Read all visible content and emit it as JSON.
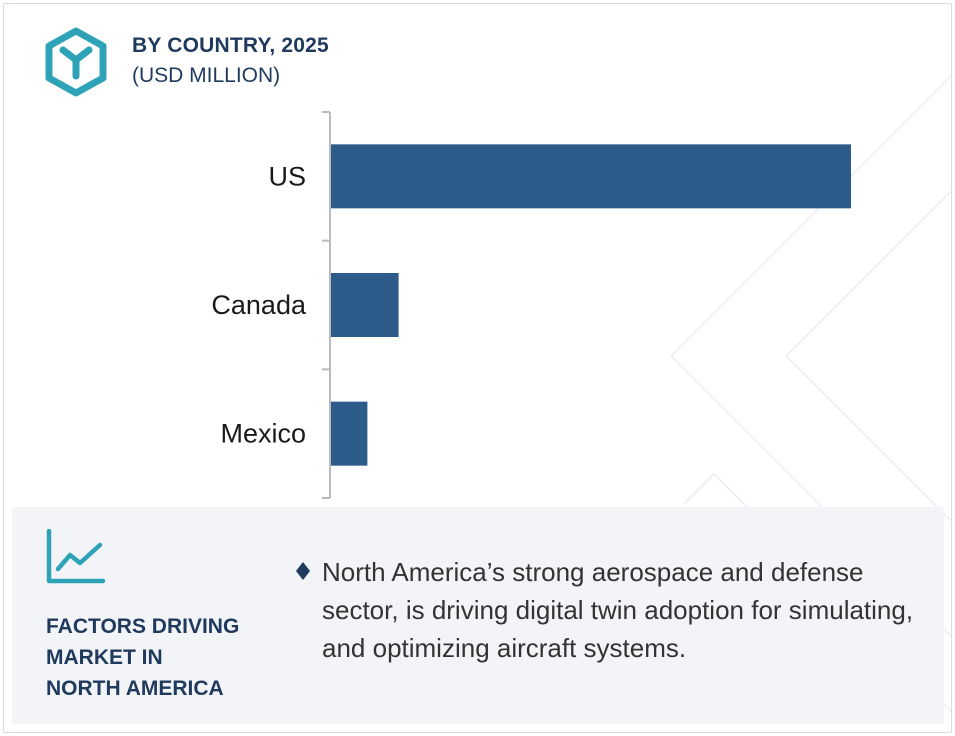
{
  "header": {
    "title": "BY COUNTRY, 2025",
    "subtitle": "(USD MILLION)",
    "logo_icon": "hexagon-y-logo-icon"
  },
  "colors": {
    "bar": "#2e5c8a",
    "heading": "#1f3a5c",
    "accent": "#2ea3b8",
    "panel_bg": "#f2f4f8"
  },
  "chart_data": {
    "type": "bar",
    "orientation": "horizontal",
    "categories": [
      "US",
      "Canada",
      "Mexico"
    ],
    "values": [
      100,
      13,
      7
    ],
    "title": "BY COUNTRY, 2025",
    "subtitle": "(USD MILLION)",
    "xlim": [
      0,
      100
    ],
    "grid": false,
    "legend": "none"
  },
  "factors": {
    "icon": "trend-line-chart-icon",
    "heading_lines": [
      "FACTORS DRIVING",
      "MARKET IN",
      "NORTH AMERICA"
    ],
    "bullet_icon": "diamond-bullet-icon",
    "bullet_text": "North America’s strong aerospace and defense sector, is driving digital twin adoption for simulating, and optimizing aircraft systems."
  }
}
